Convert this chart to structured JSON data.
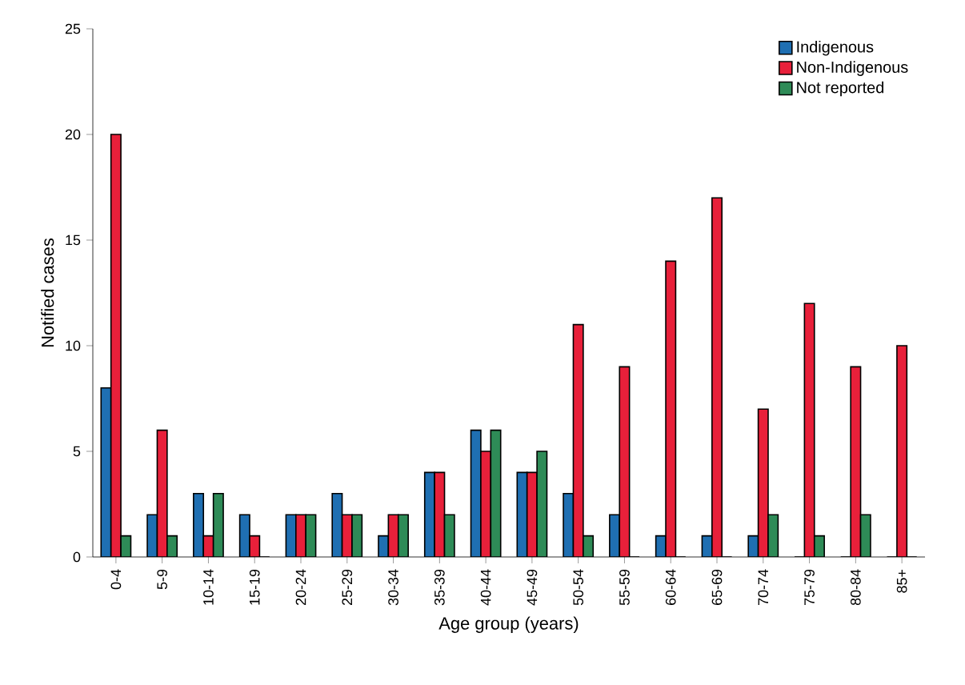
{
  "chart_data": {
    "type": "bar",
    "xlabel": "Age group (years)",
    "ylabel": "Notified cases",
    "categories": [
      "0-4",
      "5-9",
      "10-14",
      "15-19",
      "20-24",
      "25-29",
      "30-34",
      "35-39",
      "40-44",
      "45-49",
      "50-54",
      "55-59",
      "60-64",
      "65-69",
      "70-74",
      "75-79",
      "80-84",
      "85+"
    ],
    "series": [
      {
        "name": "Indigenous",
        "color": "#1f6fb2",
        "values": [
          8,
          2,
          3,
          2,
          2,
          3,
          1,
          4,
          6,
          4,
          3,
          2,
          1,
          1,
          1,
          0,
          0,
          0
        ]
      },
      {
        "name": "Non-Indigenous",
        "color": "#e8203a",
        "values": [
          20,
          6,
          1,
          1,
          2,
          2,
          2,
          4,
          5,
          4,
          11,
          9,
          14,
          17,
          7,
          12,
          9,
          10
        ]
      },
      {
        "name": "Not reported",
        "color": "#2e8b57",
        "values": [
          1,
          1,
          3,
          0,
          2,
          2,
          2,
          2,
          6,
          5,
          1,
          0,
          0,
          0,
          2,
          1,
          2,
          0
        ]
      }
    ],
    "ylim": [
      0,
      25
    ],
    "yticks": [
      0,
      5,
      10,
      15,
      20,
      25
    ],
    "grid": false,
    "legend": "top right"
  }
}
